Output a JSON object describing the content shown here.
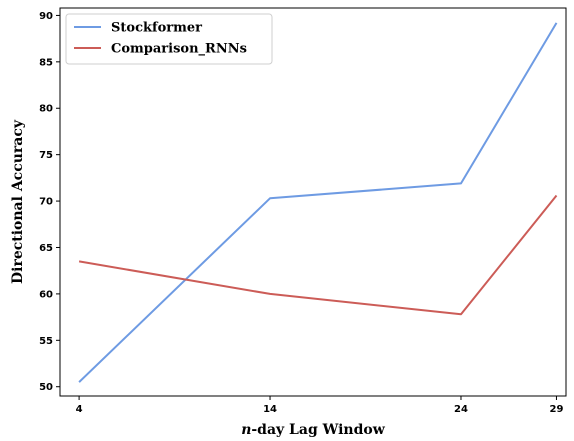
{
  "chart_data": {
    "type": "line",
    "title": "",
    "xlabel_prefix": "n",
    "xlabel_rest": "-day Lag Window",
    "ylabel": "Directional Accuracy",
    "x": [
      4,
      14,
      24,
      29
    ],
    "xticks": [
      "4",
      "14",
      "24",
      "29"
    ],
    "xlim": [
      3,
      29.5
    ],
    "ylim": [
      49,
      90.8
    ],
    "yticks": [
      50,
      55,
      60,
      65,
      70,
      75,
      80,
      85,
      90
    ],
    "grid": false,
    "legend_position": "top-left",
    "series": [
      {
        "name": "Stockformer",
        "color": "#6e9be3",
        "values": [
          50.5,
          70.3,
          71.9,
          89.2
        ]
      },
      {
        "name": "Comparison_RNNs",
        "color": "#cc5c57",
        "values": [
          63.5,
          60.0,
          57.8,
          70.6
        ]
      }
    ]
  }
}
